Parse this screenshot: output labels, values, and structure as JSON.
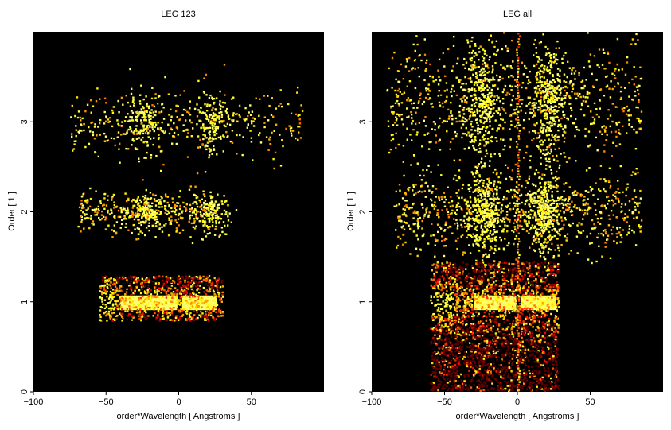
{
  "chart_data": [
    {
      "type": "heatmap",
      "title": "LEG 123",
      "xlabel": "order*Wavelength [ Angstroms ]",
      "ylabel": "Order [ 1 ]",
      "xlim": [
        -100,
        100
      ],
      "ylim": [
        0,
        4
      ],
      "xticks": [
        -100,
        -50,
        0,
        50
      ],
      "yticks": [
        0,
        1,
        2,
        3
      ],
      "xtick_labels": [
        "−100",
        "−50",
        "0",
        "50"
      ],
      "ytick_labels": [
        "0",
        "1",
        "2",
        "3"
      ],
      "colormap": "hot",
      "background": "#000000",
      "bands": [
        {
          "order": 1,
          "y_range": [
            0.8,
            1.3
          ],
          "x_range": [
            -55,
            30
          ],
          "bright_core_x": [
            -40,
            25
          ],
          "core_y": [
            0.93,
            1.07
          ]
        },
        {
          "order": 2,
          "y_range": [
            1.75,
            2.25
          ],
          "x_range": [
            -70,
            25
          ],
          "peaks_x": [
            -22,
            22
          ]
        },
        {
          "order": 3,
          "y_range": [
            2.6,
            3.4
          ],
          "x_range": [
            -75,
            85
          ],
          "peaks_x": [
            -25,
            23
          ]
        }
      ]
    },
    {
      "type": "heatmap",
      "title": "LEG all",
      "xlabel": "order*Wavelength [ Angstroms ]",
      "ylabel": "Order [ 1 ]",
      "xlim": [
        -100,
        100
      ],
      "ylim": [
        0,
        4
      ],
      "xticks": [
        -100,
        -50,
        0,
        50
      ],
      "yticks": [
        0,
        1,
        2,
        3
      ],
      "xtick_labels": [
        "−100",
        "−50",
        "0",
        "50"
      ],
      "ytick_labels": [
        "0",
        "1",
        "2",
        "3"
      ],
      "colormap": "hot",
      "background": "#000000",
      "bands": [
        {
          "order": 1,
          "y_range": [
            0.0,
            1.45
          ],
          "x_range": [
            -60,
            28
          ],
          "bright_core_x": [
            -30,
            25
          ],
          "core_y": [
            0.93,
            1.07
          ]
        },
        {
          "order": 2,
          "y_range": [
            1.5,
            2.5
          ],
          "x_range": [
            -85,
            85
          ],
          "peaks_x": [
            -22,
            18
          ]
        },
        {
          "order": 3,
          "y_range": [
            2.5,
            4.0
          ],
          "x_range": [
            -90,
            85
          ],
          "peaks_x": [
            -25,
            22
          ]
        }
      ],
      "zero_order_line_x": 0
    }
  ]
}
